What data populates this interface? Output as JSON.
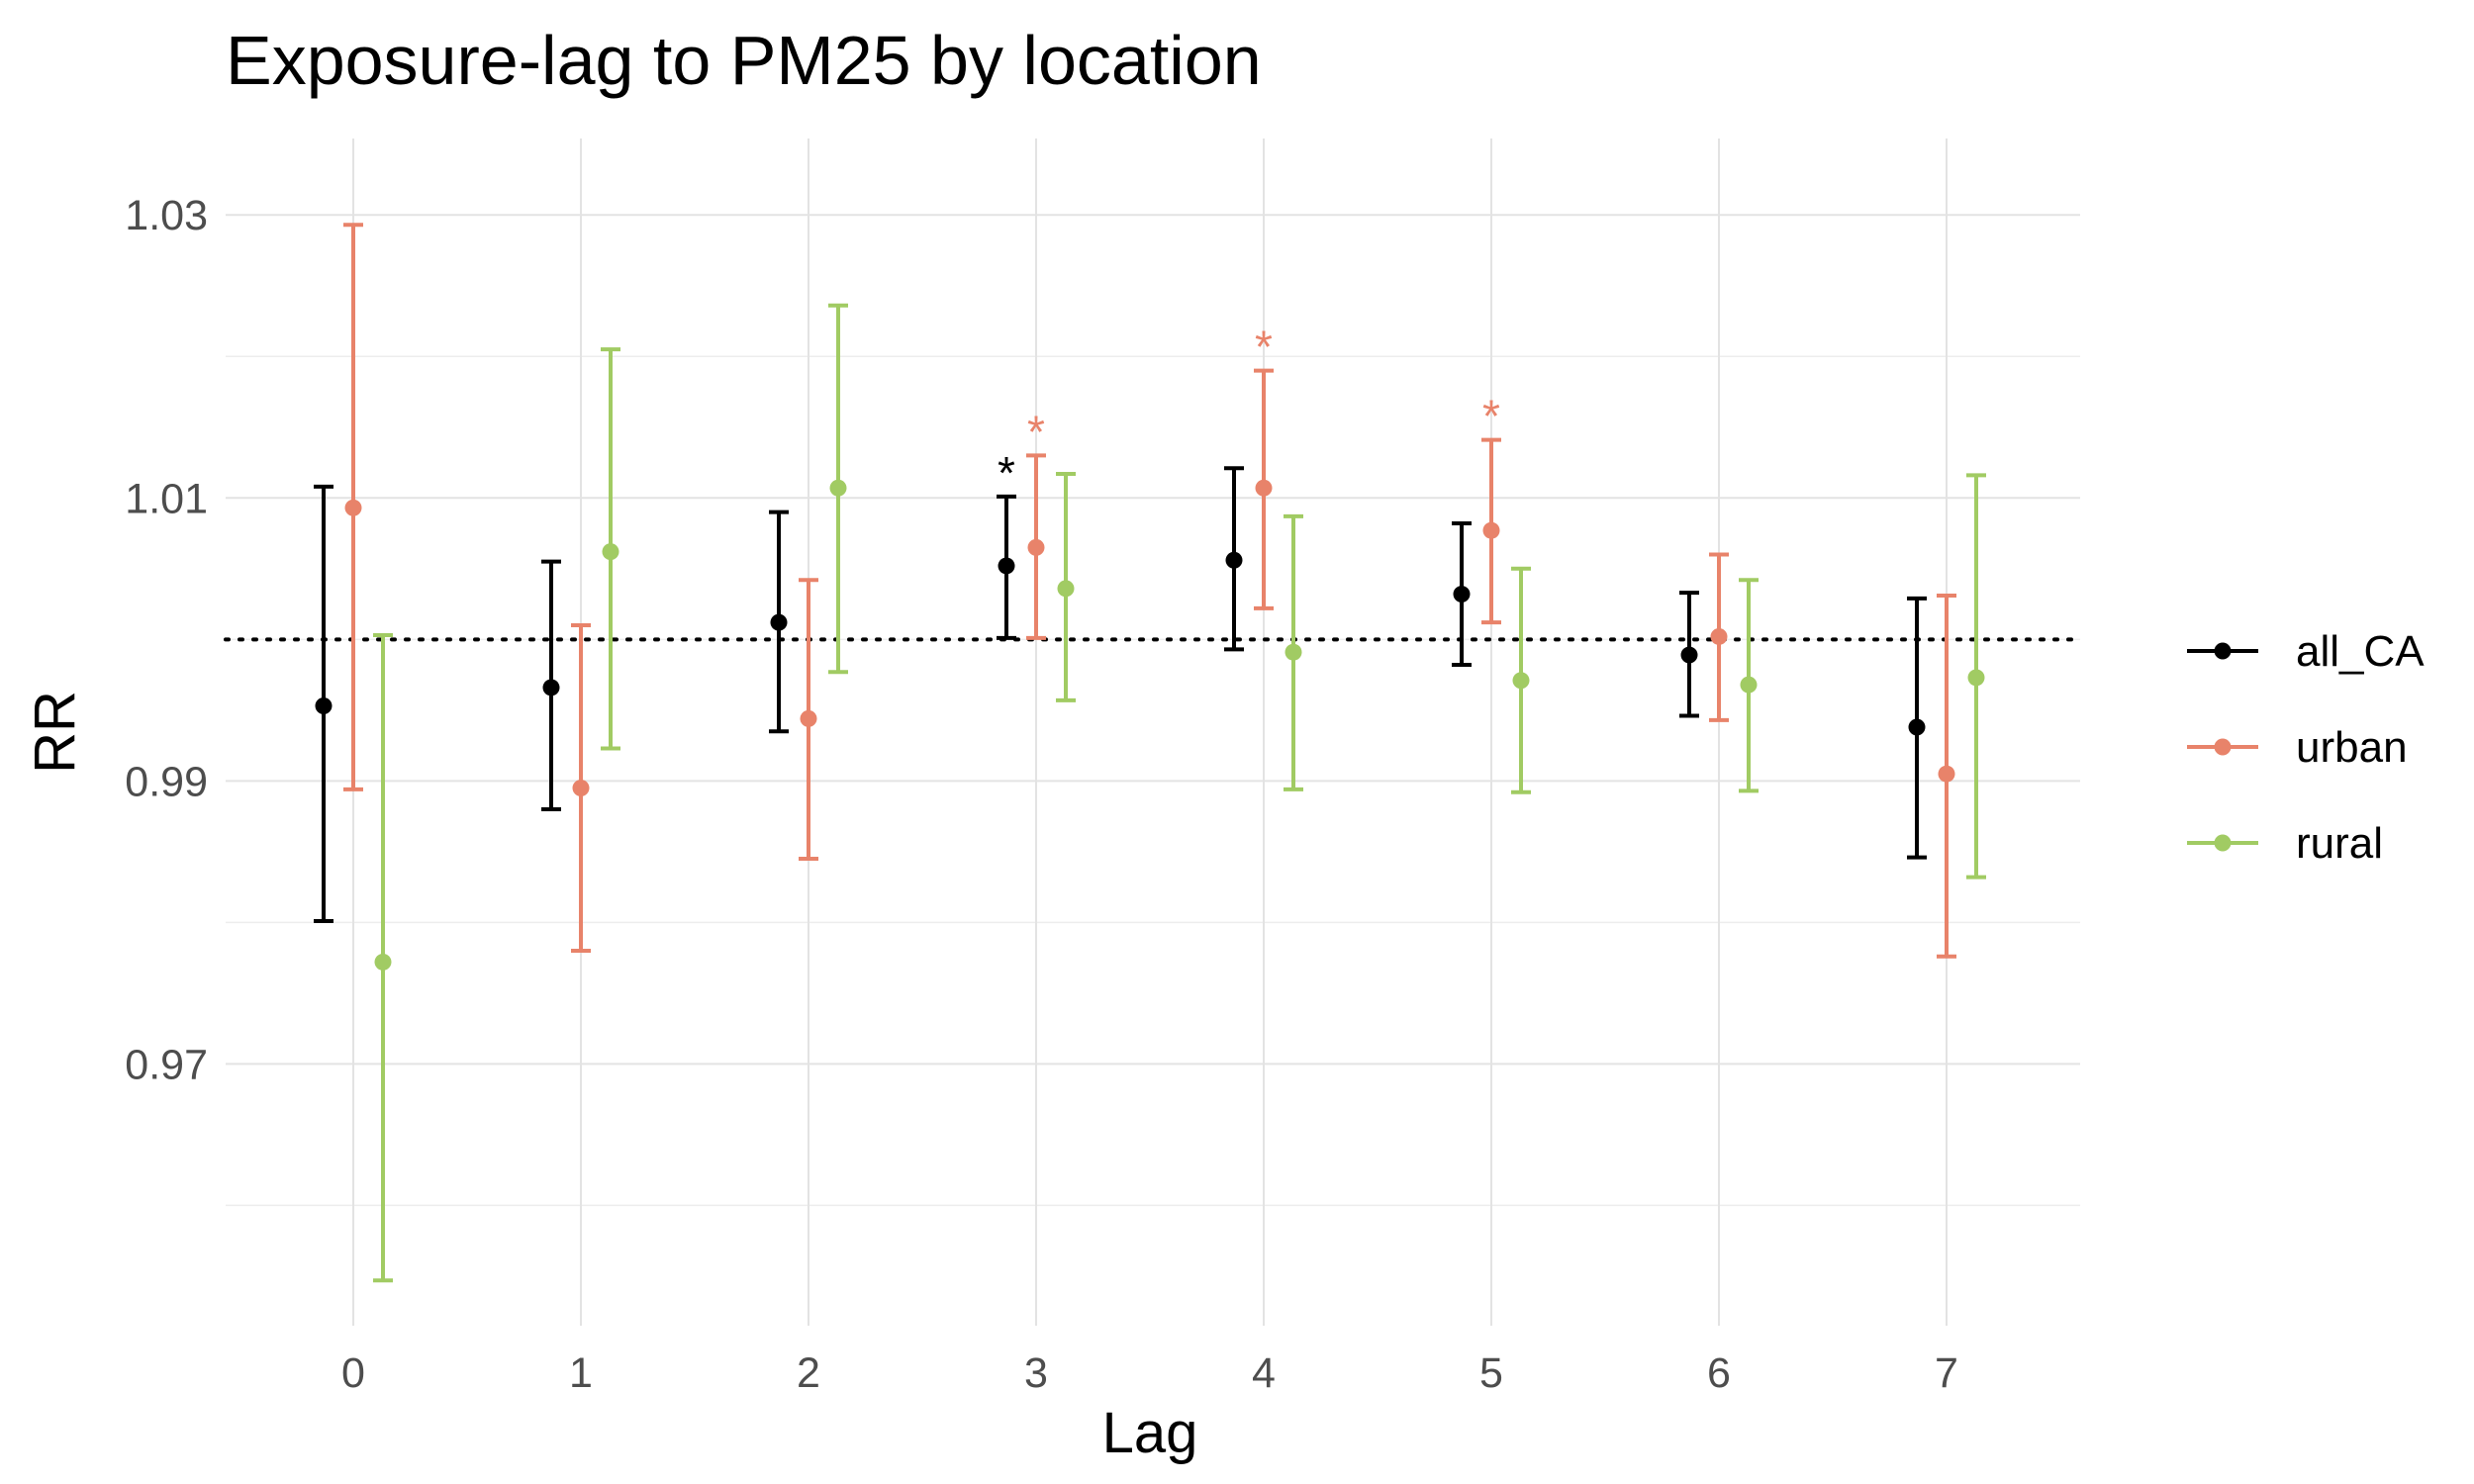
{
  "chart_data": {
    "type": "scatter",
    "subtype": "point-errorbar",
    "title": "Exposure-lag to PM25 by location",
    "xlabel": "Lag",
    "ylabel": "RR",
    "categories": [
      "0",
      "1",
      "2",
      "3",
      "4",
      "5",
      "6",
      "7"
    ],
    "ylim": [
      0.9515,
      1.0354
    ],
    "yticks": [
      0.97,
      0.99,
      1.01,
      1.03
    ],
    "yticks_labels": [
      "0.97",
      "0.99",
      "1.01",
      "1.03"
    ],
    "reference_line": 1.0,
    "grid": true,
    "legend_position": "right",
    "series": [
      {
        "name": "all_CA",
        "color": "#000000",
        "estimate": [
          0.9953,
          0.9966,
          1.0012,
          1.0052,
          1.0056,
          1.0032,
          0.9989,
          0.9938
        ],
        "lower": [
          0.9801,
          0.988,
          0.9935,
          1.0001,
          0.9993,
          0.9982,
          0.9946,
          0.9846
        ],
        "upper": [
          1.0108,
          1.0055,
          1.009,
          1.0101,
          1.0121,
          1.0082,
          1.0033,
          1.0029
        ],
        "significant": [
          false,
          false,
          false,
          true,
          false,
          false,
          false,
          false
        ]
      },
      {
        "name": "urban",
        "color": "#e8836a",
        "estimate": [
          1.0093,
          0.9895,
          0.9944,
          1.0065,
          1.0107,
          1.0077,
          1.0002,
          0.9905
        ],
        "lower": [
          0.9894,
          0.978,
          0.9845,
          1.0001,
          1.0022,
          1.0012,
          0.9943,
          0.9776
        ],
        "upper": [
          1.0293,
          1.001,
          1.0042,
          1.013,
          1.019,
          1.0141,
          1.006,
          1.0031
        ],
        "significant": [
          false,
          false,
          false,
          true,
          true,
          true,
          false,
          false
        ]
      },
      {
        "name": "rural",
        "color": "#a1cb63",
        "estimate": [
          0.9772,
          1.0062,
          1.0107,
          1.0036,
          0.9991,
          0.9971,
          0.9968,
          0.9973
        ],
        "lower": [
          0.9547,
          0.9923,
          0.9977,
          0.9957,
          0.9894,
          0.9892,
          0.9893,
          0.9832
        ],
        "upper": [
          1.0003,
          1.0205,
          1.0236,
          1.0117,
          1.0087,
          1.005,
          1.0042,
          1.0116
        ],
        "significant": [
          false,
          false,
          false,
          false,
          false,
          false,
          false,
          false
        ]
      }
    ],
    "significance_marker": "*"
  }
}
